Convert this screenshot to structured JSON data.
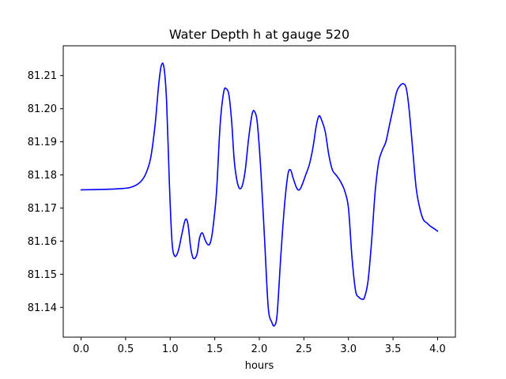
{
  "chart_data": {
    "type": "line",
    "title": "Water Depth h at gauge 520",
    "xlabel": "hours",
    "ylabel": "",
    "xlim": [
      -0.2,
      4.2
    ],
    "ylim": [
      81.131,
      81.219
    ],
    "xticks": [
      0.0,
      0.5,
      1.0,
      1.5,
      2.0,
      2.5,
      3.0,
      3.5,
      4.0
    ],
    "xtick_labels": [
      "0.0",
      "0.5",
      "1.0",
      "1.5",
      "2.0",
      "2.5",
      "3.0",
      "3.5",
      "4.0"
    ],
    "yticks": [
      81.14,
      81.15,
      81.16,
      81.17,
      81.18,
      81.19,
      81.2,
      81.21
    ],
    "ytick_labels": [
      "81.14",
      "81.15",
      "81.16",
      "81.17",
      "81.18",
      "81.19",
      "81.20",
      "81.21"
    ],
    "grid": false,
    "line_color": "#0000ff",
    "series": [
      {
        "name": "",
        "x": [
          0.0,
          0.2,
          0.4,
          0.55,
          0.65,
          0.72,
          0.78,
          0.83,
          0.87,
          0.9,
          0.93,
          0.96,
          0.99,
          1.02,
          1.05,
          1.09,
          1.13,
          1.17,
          1.2,
          1.23,
          1.26,
          1.3,
          1.33,
          1.36,
          1.39,
          1.42,
          1.45,
          1.48,
          1.52,
          1.56,
          1.6,
          1.63,
          1.66,
          1.69,
          1.72,
          1.76,
          1.8,
          1.84,
          1.88,
          1.92,
          1.95,
          1.98,
          2.02,
          2.06,
          2.1,
          2.14,
          2.17,
          2.2,
          2.24,
          2.28,
          2.32,
          2.35,
          2.38,
          2.42,
          2.45,
          2.48,
          2.52,
          2.56,
          2.6,
          2.64,
          2.67,
          2.7,
          2.74,
          2.78,
          2.82,
          2.86,
          2.9,
          2.93,
          2.96,
          3.0,
          3.04,
          3.08,
          3.12,
          3.15,
          3.18,
          3.22,
          3.26,
          3.3,
          3.34,
          3.38,
          3.42,
          3.46,
          3.5,
          3.54,
          3.58,
          3.62,
          3.65,
          3.68,
          3.72,
          3.76,
          3.8,
          3.84,
          3.88,
          3.92,
          3.96,
          4.0
        ],
        "y": [
          81.1755,
          81.1756,
          81.1758,
          81.1762,
          81.1775,
          81.18,
          81.185,
          81.195,
          81.207,
          81.213,
          81.2125,
          81.202,
          81.178,
          81.16,
          81.1555,
          81.157,
          81.162,
          81.1665,
          81.165,
          81.158,
          81.1548,
          81.156,
          81.161,
          81.1625,
          81.1605,
          81.159,
          81.1595,
          81.164,
          81.175,
          81.195,
          81.205,
          81.206,
          81.204,
          81.196,
          81.184,
          81.177,
          81.1762,
          81.181,
          81.191,
          81.1985,
          81.199,
          81.195,
          81.18,
          81.16,
          81.14,
          81.1355,
          81.1345,
          81.138,
          81.155,
          81.17,
          81.18,
          81.1815,
          81.179,
          81.176,
          81.1755,
          81.177,
          81.18,
          81.183,
          81.188,
          81.195,
          81.1978,
          81.1965,
          81.193,
          81.186,
          81.1815,
          81.18,
          81.1785,
          81.177,
          81.175,
          81.17,
          81.155,
          81.145,
          81.143,
          81.1425,
          81.143,
          81.148,
          81.16,
          81.175,
          81.184,
          81.1875,
          81.19,
          81.195,
          81.2,
          81.205,
          81.207,
          81.2075,
          81.206,
          81.2,
          81.188,
          81.176,
          81.17,
          81.1665,
          81.1655,
          81.1645,
          81.1638,
          81.163
        ]
      }
    ]
  }
}
